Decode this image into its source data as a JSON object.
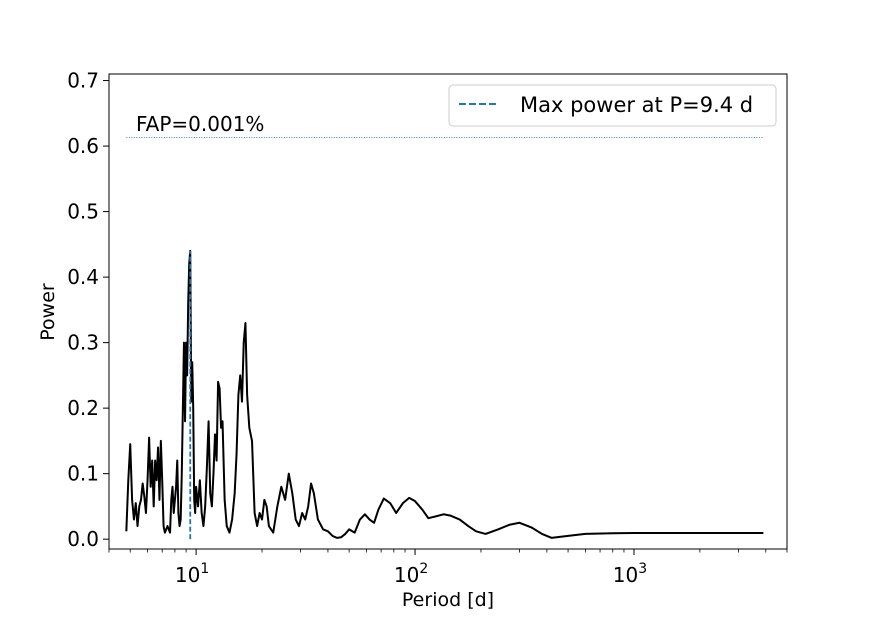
{
  "chart_data": {
    "type": "line",
    "title": "",
    "xlabel": "Period [d]",
    "ylabel": "Power",
    "x_scale": "log",
    "xlim": [
      4,
      5000
    ],
    "ylim": [
      -0.015,
      0.71
    ],
    "y_ticks": [
      0.0,
      0.1,
      0.2,
      0.3,
      0.4,
      0.5,
      0.6,
      0.7
    ],
    "y_tick_labels": [
      "0.0",
      "0.1",
      "0.2",
      "0.3",
      "0.4",
      "0.5",
      "0.6",
      "0.7"
    ],
    "x_ticks": [
      10,
      100,
      1000
    ],
    "x_tick_labels": [
      {
        "base": "10",
        "exp": "1"
      },
      {
        "base": "10",
        "exp": "2"
      },
      {
        "base": "10",
        "exp": "3"
      }
    ],
    "grid": false,
    "legend_placement": "top-right",
    "series": [
      {
        "color": "#000000",
        "points": [
          [
            4.8,
            0.012
          ],
          [
            4.9,
            0.09
          ],
          [
            5.0,
            0.145
          ],
          [
            5.1,
            0.06
          ],
          [
            5.2,
            0.03
          ],
          [
            5.3,
            0.055
          ],
          [
            5.4,
            0.02
          ],
          [
            5.5,
            0.05
          ],
          [
            5.6,
            0.06
          ],
          [
            5.7,
            0.085
          ],
          [
            5.8,
            0.065
          ],
          [
            5.9,
            0.04
          ],
          [
            6.0,
            0.09
          ],
          [
            6.1,
            0.155
          ],
          [
            6.2,
            0.08
          ],
          [
            6.3,
            0.12
          ],
          [
            6.4,
            0.05
          ],
          [
            6.5,
            0.12
          ],
          [
            6.6,
            0.09
          ],
          [
            6.7,
            0.14
          ],
          [
            6.8,
            0.06
          ],
          [
            6.9,
            0.15
          ],
          [
            7.0,
            0.09
          ],
          [
            7.1,
            0.02
          ],
          [
            7.2,
            0.01
          ],
          [
            7.4,
            0.02
          ],
          [
            7.6,
            0.01
          ],
          [
            7.7,
            0.06
          ],
          [
            7.8,
            0.08
          ],
          [
            7.9,
            0.04
          ],
          [
            8.0,
            0.06
          ],
          [
            8.1,
            0.08
          ],
          [
            8.2,
            0.12
          ],
          [
            8.3,
            0.04
          ],
          [
            8.4,
            0.02
          ],
          [
            8.5,
            0.03
          ],
          [
            8.6,
            0.1
          ],
          [
            8.8,
            0.3
          ],
          [
            8.9,
            0.18
          ],
          [
            9.0,
            0.3
          ],
          [
            9.1,
            0.25
          ],
          [
            9.2,
            0.36
          ],
          [
            9.3,
            0.42
          ],
          [
            9.4,
            0.44
          ],
          [
            9.5,
            0.21
          ],
          [
            9.6,
            0.27
          ],
          [
            9.7,
            0.2
          ],
          [
            9.8,
            0.06
          ],
          [
            9.9,
            0.04
          ],
          [
            10.0,
            0.08
          ],
          [
            10.2,
            0.05
          ],
          [
            10.4,
            0.09
          ],
          [
            10.6,
            0.04
          ],
          [
            10.8,
            0.02
          ],
          [
            11.0,
            0.05
          ],
          [
            11.2,
            0.11
          ],
          [
            11.4,
            0.18
          ],
          [
            11.6,
            0.07
          ],
          [
            11.8,
            0.05
          ],
          [
            12.0,
            0.1
          ],
          [
            12.2,
            0.16
          ],
          [
            12.4,
            0.12
          ],
          [
            12.6,
            0.24
          ],
          [
            12.8,
            0.23
          ],
          [
            13.0,
            0.17
          ],
          [
            13.2,
            0.18
          ],
          [
            13.5,
            0.06
          ],
          [
            13.8,
            0.02
          ],
          [
            14.2,
            0.01
          ],
          [
            14.6,
            0.03
          ],
          [
            15.0,
            0.07
          ],
          [
            15.3,
            0.13
          ],
          [
            15.6,
            0.22
          ],
          [
            15.9,
            0.25
          ],
          [
            16.2,
            0.21
          ],
          [
            16.5,
            0.3
          ],
          [
            16.8,
            0.33
          ],
          [
            17.1,
            0.22
          ],
          [
            17.5,
            0.17
          ],
          [
            18.0,
            0.15
          ],
          [
            18.5,
            0.04
          ],
          [
            19.0,
            0.02
          ],
          [
            19.5,
            0.04
          ],
          [
            20.0,
            0.03
          ],
          [
            20.5,
            0.06
          ],
          [
            21.0,
            0.05
          ],
          [
            21.5,
            0.02
          ],
          [
            22.5,
            0.01
          ],
          [
            23.5,
            0.05
          ],
          [
            24.5,
            0.08
          ],
          [
            25.5,
            0.06
          ],
          [
            26.5,
            0.1
          ],
          [
            27.5,
            0.07
          ],
          [
            28.5,
            0.03
          ],
          [
            29.5,
            0.02
          ],
          [
            30.5,
            0.04
          ],
          [
            31.5,
            0.03
          ],
          [
            32.5,
            0.05
          ],
          [
            33.5,
            0.085
          ],
          [
            34.5,
            0.07
          ],
          [
            36,
            0.03
          ],
          [
            38,
            0.015
          ],
          [
            40,
            0.012
          ],
          [
            42,
            0.005
          ],
          [
            44,
            0.002
          ],
          [
            46,
            0.003
          ],
          [
            48,
            0.008
          ],
          [
            50,
            0.015
          ],
          [
            53,
            0.01
          ],
          [
            56,
            0.03
          ],
          [
            59,
            0.038
          ],
          [
            62,
            0.03
          ],
          [
            65,
            0.025
          ],
          [
            68,
            0.045
          ],
          [
            72,
            0.062
          ],
          [
            77,
            0.055
          ],
          [
            82,
            0.04
          ],
          [
            88,
            0.055
          ],
          [
            94,
            0.063
          ],
          [
            100,
            0.058
          ],
          [
            108,
            0.045
          ],
          [
            115,
            0.032
          ],
          [
            125,
            0.035
          ],
          [
            135,
            0.038
          ],
          [
            145,
            0.036
          ],
          [
            160,
            0.03
          ],
          [
            175,
            0.02
          ],
          [
            190,
            0.012
          ],
          [
            210,
            0.008
          ],
          [
            240,
            0.015
          ],
          [
            270,
            0.022
          ],
          [
            300,
            0.025
          ],
          [
            340,
            0.018
          ],
          [
            380,
            0.008
          ],
          [
            420,
            0.002
          ],
          [
            500,
            0.005
          ],
          [
            600,
            0.008
          ],
          [
            800,
            0.009
          ],
          [
            1000,
            0.0095
          ],
          [
            1500,
            0.0095
          ],
          [
            2500,
            0.0095
          ],
          [
            3900,
            0.0095
          ]
        ]
      }
    ],
    "max_power_line": {
      "period": 9.4,
      "power": 0.44,
      "color": "#1f77b4",
      "legend_label": "Max power at P=9.4 d"
    },
    "fap_line": {
      "power": 0.613,
      "x_range": [
        4.8,
        3900
      ],
      "color": "#1f77b4",
      "label": "FAP=0.001%"
    }
  }
}
